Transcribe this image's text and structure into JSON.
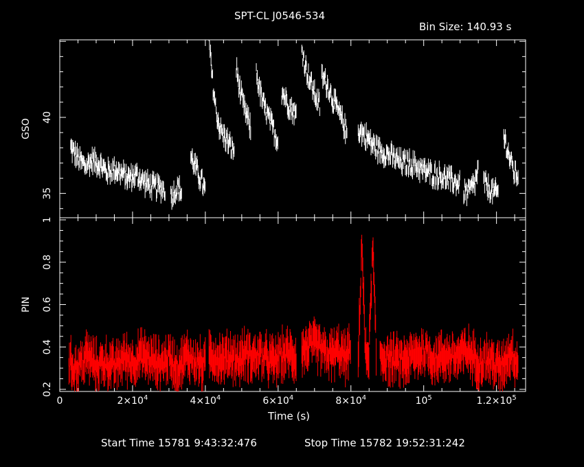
{
  "chart_data": [
    {
      "type": "line",
      "panel": "top",
      "title": "SPT-CL J0546-534",
      "subtitle": "Bin Size: 140.93 s",
      "ylabel": "GSO",
      "ylim": [
        33.4,
        45.1
      ],
      "yticks": [
        "35",
        "40"
      ],
      "xlim": [
        0,
        128000
      ],
      "color": "#ffffff",
      "segments": [
        {
          "x": [
            3000,
            5000,
            7000,
            9000,
            11000,
            13000,
            15000,
            17000,
            19000,
            21000,
            23000,
            25000,
            27000,
            29000
          ],
          "y": [
            38.0,
            37.3,
            36.8,
            37.2,
            36.9,
            36.4,
            36.6,
            36.3,
            36.0,
            36.2,
            35.8,
            35.5,
            35.4,
            35.3
          ]
        },
        {
          "x": [
            30500,
            31500,
            32500,
            33500
          ],
          "y": [
            34.8,
            35.1,
            35.4,
            35.0
          ]
        },
        {
          "x": [
            36000,
            37000,
            38000,
            39000,
            40000
          ],
          "y": [
            37.4,
            36.9,
            36.3,
            35.8,
            35.1
          ]
        },
        {
          "x": [
            41000,
            42000,
            43000,
            44000,
            45000,
            46000,
            47000,
            48000
          ],
          "y": [
            45.0,
            42.3,
            40.3,
            39.3,
            38.8,
            38.5,
            38.0,
            37.8
          ]
        },
        {
          "x": [
            48500,
            49500,
            50500,
            51500,
            52500
          ],
          "y": [
            43.2,
            41.8,
            40.7,
            40.0,
            39.2
          ]
        },
        {
          "x": [
            54000,
            55000,
            56000,
            57000,
            58000,
            59000,
            60000
          ],
          "y": [
            43.0,
            41.7,
            40.8,
            40.2,
            39.6,
            39.0,
            38.4
          ]
        },
        {
          "x": [
            61000,
            62000,
            63000,
            64000,
            65000
          ],
          "y": [
            41.7,
            41.3,
            40.8,
            40.5,
            40.1
          ]
        },
        {
          "x": [
            66500,
            67500,
            68500,
            69500,
            70500,
            71500
          ],
          "y": [
            44.5,
            43.4,
            42.6,
            41.9,
            41.3,
            40.7
          ]
        },
        {
          "x": [
            72000,
            73000,
            74000,
            75000,
            76000,
            77000,
            78000,
            79000
          ],
          "y": [
            42.7,
            42.4,
            41.9,
            41.2,
            40.7,
            40.1,
            39.6,
            38.8
          ]
        },
        {
          "x": [
            82000,
            84000,
            86000,
            88000,
            90000,
            92000,
            94000,
            96000,
            98000,
            100000,
            102000,
            104000,
            106000,
            108000,
            110000
          ],
          "y": [
            39.2,
            38.8,
            38.2,
            37.8,
            37.6,
            37.3,
            37.0,
            37.0,
            36.8,
            36.5,
            36.3,
            36.2,
            36.0,
            35.8,
            35.6
          ]
        },
        {
          "x": [
            111000,
            112000,
            113000,
            114000,
            115000
          ],
          "y": [
            35.2,
            35.0,
            35.3,
            35.6,
            36.6
          ]
        },
        {
          "x": [
            116500,
            117500,
            118500,
            119500,
            120500
          ],
          "y": [
            35.7,
            35.4,
            35.2,
            35.0,
            35.1
          ]
        },
        {
          "x": [
            122000,
            123000,
            124000,
            125000,
            126000
          ],
          "y": [
            38.8,
            37.9,
            37.0,
            36.3,
            36.2
          ]
        }
      ]
    },
    {
      "type": "line",
      "panel": "bottom",
      "xlabel": "Time (s)",
      "ylabel": "PIN",
      "ylim": [
        0.19,
        1.01
      ],
      "yticks": [
        "0.2",
        "0.4",
        "0.6",
        "0.8",
        "1"
      ],
      "xlim": [
        0,
        128000
      ],
      "xticks": [
        {
          "value": 0,
          "label": "0"
        },
        {
          "value": 20000,
          "label": "2×10",
          "exp": "4"
        },
        {
          "value": 40000,
          "label": "4×10",
          "exp": "4"
        },
        {
          "value": 60000,
          "label": "6×10",
          "exp": "4"
        },
        {
          "value": 80000,
          "label": "8×10",
          "exp": "4"
        },
        {
          "value": 100000,
          "label": "10",
          "exp": "5"
        },
        {
          "value": 120000,
          "label": "1.2×10",
          "exp": "5"
        }
      ],
      "color": "#ff0000",
      "segments": [
        {
          "x": [
            2500,
            5000,
            7500,
            10000,
            12500,
            15000,
            17500,
            20000,
            22500,
            25000,
            27500,
            30000,
            32500,
            35000,
            37500,
            40000
          ],
          "y": [
            0.32,
            0.3,
            0.36,
            0.31,
            0.33,
            0.3,
            0.35,
            0.33,
            0.36,
            0.34,
            0.32,
            0.35,
            0.3,
            0.36,
            0.33,
            0.31
          ]
        },
        {
          "x": [
            41000,
            43000,
            45000,
            47000,
            49000,
            51000,
            53000,
            55000,
            57000,
            59000,
            61000,
            63000,
            65000
          ],
          "y": [
            0.37,
            0.35,
            0.34,
            0.36,
            0.33,
            0.37,
            0.35,
            0.36,
            0.34,
            0.33,
            0.36,
            0.37,
            0.35
          ]
        },
        {
          "x": [
            66500,
            68500,
            70500,
            72500,
            74500,
            76500,
            78500,
            80000
          ],
          "y": [
            0.38,
            0.4,
            0.41,
            0.37,
            0.36,
            0.38,
            0.35,
            0.38
          ]
        },
        {
          "x": [
            82000,
            83000,
            84000,
            85000,
            86000,
            87000
          ],
          "y": [
            0.33,
            0.9,
            0.35,
            0.38,
            0.87,
            0.34
          ]
        },
        {
          "x": [
            88000,
            91000,
            94000,
            97000,
            100000,
            103000,
            106000,
            109000,
            112000,
            115000,
            118000,
            121000,
            124000,
            126000
          ],
          "y": [
            0.36,
            0.34,
            0.33,
            0.35,
            0.38,
            0.34,
            0.36,
            0.35,
            0.38,
            0.33,
            0.34,
            0.3,
            0.38,
            0.32
          ]
        }
      ]
    }
  ],
  "footer": {
    "start_label": "Start Time 15781  9:43:32:476",
    "stop_label": "Stop Time 15782 19:52:31:242"
  }
}
